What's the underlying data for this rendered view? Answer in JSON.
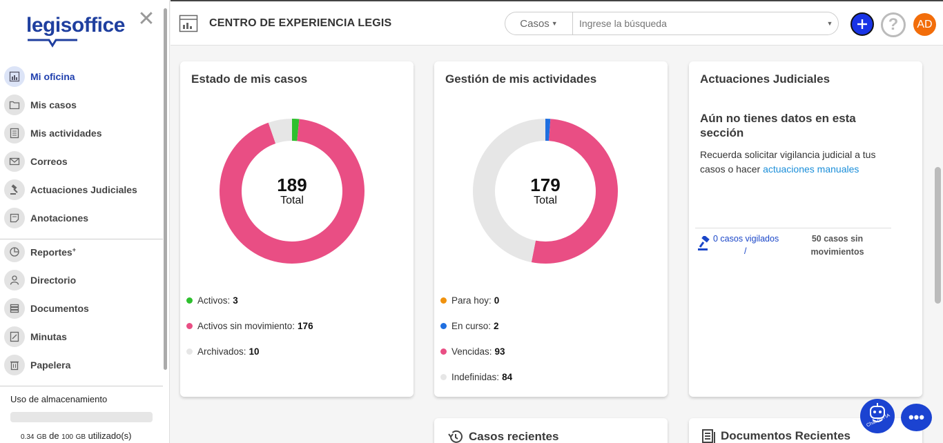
{
  "brand": {
    "logo_part1": "legis",
    "logo_part2": "office"
  },
  "sidebar": {
    "items": [
      {
        "label": "Mi oficina",
        "icon": "dashboard-icon",
        "active": true
      },
      {
        "label": "Mis casos",
        "icon": "folder-icon"
      },
      {
        "label": "Mis actividades",
        "icon": "checklist-icon"
      },
      {
        "label": "Correos",
        "icon": "mail-icon"
      },
      {
        "label": "Actuaciones Judiciales",
        "icon": "gavel-icon"
      },
      {
        "label": "Anotaciones",
        "icon": "note-icon"
      },
      {
        "label": "Reportes",
        "sup": "+",
        "icon": "pie-chart-icon"
      },
      {
        "label": "Directorio",
        "icon": "person-icon"
      },
      {
        "label": "Documentos",
        "icon": "stack-icon"
      },
      {
        "label": "Minutas",
        "icon": "minutes-icon"
      },
      {
        "label": "Papelera",
        "icon": "trash-icon"
      }
    ],
    "storage": {
      "title": "Uso de almacenamiento",
      "used": "0.34",
      "used_unit": "GB",
      "of": "de",
      "total": "100",
      "total_unit": "GB",
      "suffix": "utilizado(s)"
    }
  },
  "header": {
    "title": "CENTRO DE EXPERIENCIA LEGIS",
    "search_type": "Casos",
    "search_placeholder": "Ingrese la búsqueda",
    "help": "?",
    "avatar": "AD"
  },
  "cards": {
    "estado": {
      "title": "Estado de mis casos",
      "total": "189",
      "total_label": "Total",
      "legend": [
        {
          "label": "Activos:",
          "value": "3"
        },
        {
          "label": "Activos sin movimiento:",
          "value": "176"
        },
        {
          "label": "Archivados:",
          "value": "10"
        }
      ]
    },
    "gestion": {
      "title": "Gestión de mis actividades",
      "total": "179",
      "total_label": "Total",
      "legend": [
        {
          "label": "Para hoy:",
          "value": "0"
        },
        {
          "label": "En curso:",
          "value": "2"
        },
        {
          "label": "Vencidas:",
          "value": "93"
        },
        {
          "label": "Indefinidas:",
          "value": "84"
        }
      ]
    },
    "actuaciones": {
      "title": "Actuaciones Judiciales",
      "empty_title": "Aún no tienes datos en esta sección",
      "empty_text": "Recuerda solicitar vigilancia judicial a tus casos o hacer",
      "empty_link": "actuaciones manuales",
      "vigilados": "0 casos vigilados",
      "slash": "/",
      "sin_movimientos": "50 casos sin movimientos"
    },
    "recientes": {
      "title": "Casos recientes"
    },
    "documentos": {
      "title": "Documentos Recientes"
    }
  },
  "chat": {
    "ia_label": "Chat con IA",
    "dots": "•••"
  },
  "chart_data": [
    {
      "type": "pie",
      "title": "Estado de mis casos",
      "categories": [
        "Activos",
        "Activos sin movimiento",
        "Archivados"
      ],
      "values": [
        3,
        176,
        10
      ],
      "colors": [
        "#2ec02e",
        "#e94e84",
        "#e6e6e6"
      ]
    },
    {
      "type": "pie",
      "title": "Gestión de mis actividades",
      "categories": [
        "Para hoy",
        "En curso",
        "Vencidas",
        "Indefinidas"
      ],
      "values": [
        0,
        2,
        93,
        84
      ],
      "colors": [
        "#f0920e",
        "#1f6fe0",
        "#e94e84",
        "#e6e6e6"
      ]
    }
  ]
}
